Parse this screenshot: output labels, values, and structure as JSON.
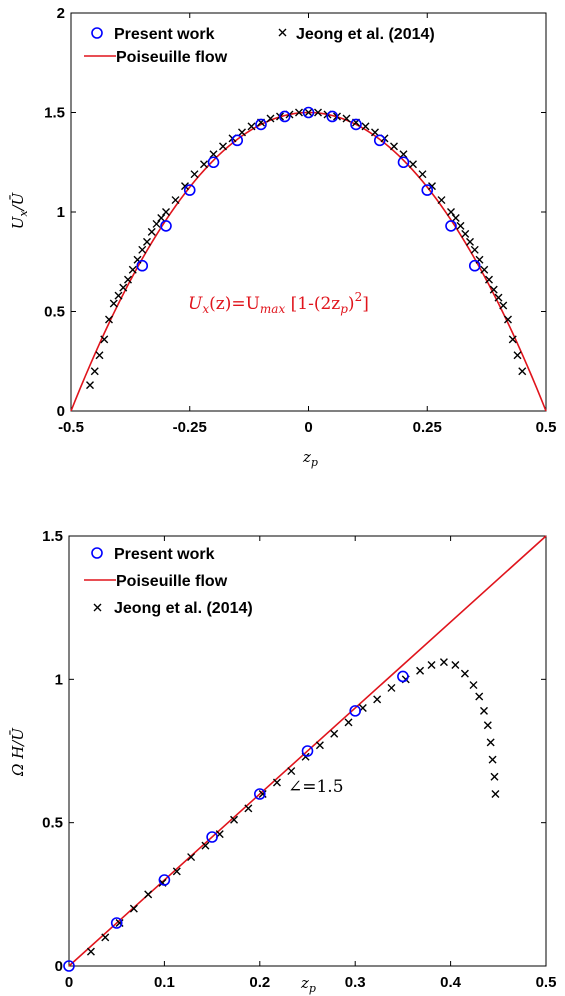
{
  "chart_data": [
    {
      "type": "scatter",
      "xlabel": "z_p",
      "ylabel": "U_x/Ū",
      "xlim": [
        -0.5,
        0.5
      ],
      "ylim": [
        0,
        2
      ],
      "xticks": [
        "-0.5",
        "-0.25",
        "0",
        "0.25",
        "0.5"
      ],
      "xtick_values": [
        -0.5,
        -0.25,
        0,
        0.25,
        0.5
      ],
      "yticks": [
        "0",
        "0.5",
        "1",
        "1.5",
        "2"
      ],
      "ytick_values": [
        0,
        0.5,
        1,
        1.5,
        2
      ],
      "grid": false,
      "legend_position": "top",
      "annotation": "U_x(z)=U_max [1-(2z_p)^2]",
      "series": [
        {
          "name": "Present work",
          "marker": "circle",
          "color": "#0000ff",
          "x": [
            -0.35,
            -0.3,
            -0.25,
            -0.2,
            -0.15,
            -0.1,
            -0.05,
            0,
            0.05,
            0.1,
            0.15,
            0.2,
            0.25,
            0.3,
            0.35
          ],
          "y": [
            0.73,
            0.93,
            1.11,
            1.25,
            1.36,
            1.44,
            1.48,
            1.5,
            1.48,
            1.44,
            1.36,
            1.25,
            1.11,
            0.93,
            0.73
          ]
        },
        {
          "name": "Jeong et al. (2014)",
          "marker": "x",
          "color": "#000000",
          "x": [
            -0.46,
            -0.45,
            -0.44,
            -0.43,
            -0.42,
            -0.41,
            -0.4,
            -0.39,
            -0.38,
            -0.37,
            -0.36,
            -0.35,
            -0.34,
            -0.33,
            -0.32,
            -0.31,
            -0.3,
            -0.28,
            -0.26,
            -0.24,
            -0.22,
            -0.2,
            -0.18,
            -0.16,
            -0.14,
            -0.12,
            -0.1,
            -0.08,
            -0.06,
            -0.04,
            -0.02,
            0,
            0.02,
            0.04,
            0.06,
            0.08,
            0.1,
            0.12,
            0.14,
            0.16,
            0.18,
            0.2,
            0.22,
            0.24,
            0.26,
            0.28,
            0.3,
            0.31,
            0.32,
            0.33,
            0.34,
            0.35,
            0.36,
            0.37,
            0.38,
            0.39,
            0.4,
            0.41,
            0.42,
            0.43,
            0.44,
            0.45
          ],
          "y": [
            0.13,
            0.2,
            0.28,
            0.36,
            0.46,
            0.54,
            0.58,
            0.62,
            0.66,
            0.71,
            0.76,
            0.81,
            0.85,
            0.9,
            0.94,
            0.97,
            1.0,
            1.06,
            1.13,
            1.19,
            1.24,
            1.29,
            1.33,
            1.37,
            1.4,
            1.43,
            1.45,
            1.47,
            1.48,
            1.49,
            1.5,
            1.5,
            1.5,
            1.49,
            1.48,
            1.47,
            1.45,
            1.43,
            1.4,
            1.37,
            1.33,
            1.29,
            1.24,
            1.19,
            1.13,
            1.06,
            1.0,
            0.97,
            0.93,
            0.89,
            0.85,
            0.81,
            0.76,
            0.71,
            0.66,
            0.61,
            0.57,
            0.53,
            0.46,
            0.36,
            0.28,
            0.2
          ]
        },
        {
          "name": "Poiseuille flow",
          "marker": "line",
          "color": "#e0141c",
          "x": [
            -0.5,
            -0.45,
            -0.4,
            -0.35,
            -0.3,
            -0.25,
            -0.2,
            -0.15,
            -0.1,
            -0.05,
            0,
            0.05,
            0.1,
            0.15,
            0.2,
            0.25,
            0.3,
            0.35,
            0.4,
            0.45,
            0.5
          ],
          "y": [
            0,
            0.285,
            0.54,
            0.765,
            0.96,
            1.125,
            1.26,
            1.365,
            1.44,
            1.485,
            1.5,
            1.485,
            1.44,
            1.365,
            1.26,
            1.125,
            0.96,
            0.765,
            0.54,
            0.285,
            0
          ]
        }
      ]
    },
    {
      "type": "scatter",
      "xlabel": "z_p",
      "ylabel": "Ω H/Ū",
      "xlim": [
        0,
        0.5
      ],
      "ylim": [
        0,
        1.5
      ],
      "xticks": [
        "0",
        "0.1",
        "0.2",
        "0.3",
        "0.4",
        "0.5"
      ],
      "xtick_values": [
        0,
        0.1,
        0.2,
        0.3,
        0.4,
        0.5
      ],
      "yticks": [
        "0",
        "0.5",
        "1",
        "1.5"
      ],
      "ytick_values": [
        0,
        0.5,
        1,
        1.5
      ],
      "grid": false,
      "legend_position": "top-left",
      "annotation": "∠=1.5",
      "series": [
        {
          "name": "Present work",
          "marker": "circle",
          "color": "#0000ff",
          "x": [
            0,
            0.05,
            0.1,
            0.15,
            0.2,
            0.25,
            0.3,
            0.35
          ],
          "y": [
            0,
            0.15,
            0.3,
            0.45,
            0.6,
            0.75,
            0.89,
            1.01
          ]
        },
        {
          "name": "Poiseuille flow",
          "marker": "line",
          "color": "#e0141c",
          "x": [
            0,
            0.5
          ],
          "y": [
            0,
            1.5
          ]
        },
        {
          "name": "Jeong et al. (2014)",
          "marker": "x",
          "color": "#000000",
          "x": [
            0.023,
            0.038,
            0.053,
            0.068,
            0.083,
            0.098,
            0.113,
            0.128,
            0.143,
            0.158,
            0.173,
            0.188,
            0.203,
            0.218,
            0.233,
            0.248,
            0.263,
            0.278,
            0.293,
            0.308,
            0.323,
            0.338,
            0.353,
            0.368,
            0.38,
            0.393,
            0.405,
            0.415,
            0.424,
            0.43,
            0.435,
            0.439,
            0.442,
            0.444,
            0.446,
            0.447
          ],
          "y": [
            0.05,
            0.1,
            0.15,
            0.2,
            0.25,
            0.29,
            0.33,
            0.38,
            0.42,
            0.46,
            0.51,
            0.55,
            0.6,
            0.64,
            0.68,
            0.73,
            0.77,
            0.81,
            0.85,
            0.9,
            0.93,
            0.97,
            1.0,
            1.03,
            1.05,
            1.06,
            1.05,
            1.02,
            0.98,
            0.94,
            0.89,
            0.84,
            0.78,
            0.72,
            0.66,
            0.6
          ]
        }
      ]
    }
  ],
  "panel1": {
    "legend": {
      "present": "Present work",
      "jeong": "Jeong et al. (2014)",
      "poiseuille": "Poiseuille flow"
    },
    "xlabel_base": "z",
    "xlabel_sub": "p",
    "ylabel_base": "U",
    "ylabel_sub": "x",
    "ylabel_rest": "/Ū",
    "annot": {
      "u": "U",
      "x": "x",
      "mid": "(z)=U",
      "max": "max",
      "b1": " [1-(2z",
      "p": "p",
      "b2": ")",
      "two": "2",
      "b3": "]"
    }
  },
  "panel2": {
    "legend": {
      "present": "Present work",
      "poiseuille": "Poiseuille flow",
      "jeong": "Jeong et al. (2014)"
    },
    "xlabel_base": "z",
    "xlabel_sub": "p",
    "ylabel": "Ω H/Ū",
    "annot": "∠=1.5"
  }
}
